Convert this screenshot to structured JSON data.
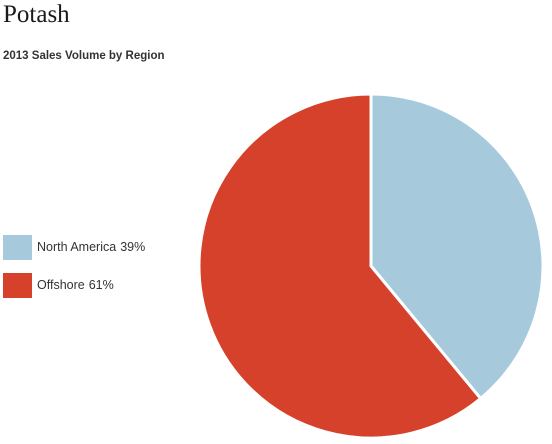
{
  "page": {
    "title": "Potash"
  },
  "chart_data": {
    "type": "pie",
    "title": "2013 Sales Volume by Region",
    "categories": [
      "North America",
      "Offshore"
    ],
    "values": [
      39,
      61
    ],
    "value_labels": [
      "39%",
      "61%"
    ],
    "colors": [
      "#a7c9dc",
      "#d5412b"
    ],
    "start_angle_deg": 0,
    "direction": "clockwise",
    "legend": "left"
  }
}
